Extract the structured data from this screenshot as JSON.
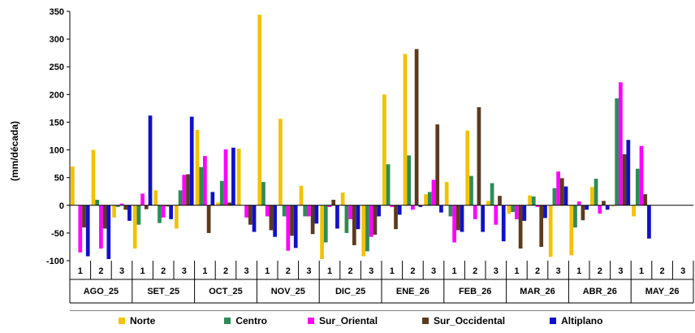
{
  "chart_data": {
    "type": "bar",
    "ylabel": "(mm/década)",
    "ylim": [
      -100,
      350
    ],
    "yticks": [
      -100,
      -50,
      0,
      50,
      100,
      150,
      200,
      250,
      300,
      350
    ],
    "months": [
      "AGO_25",
      "SET_25",
      "OCT_25",
      "NOV_25",
      "DIC_25",
      "ENE_26",
      "FEB_26",
      "MAR_26",
      "ABR_26",
      "MAY_26"
    ],
    "dekads": [
      "1",
      "2",
      "3"
    ],
    "legend_position": "bottom",
    "series": [
      {
        "name": "Norte",
        "color": "#f2c200",
        "values": [
          70,
          100,
          -22,
          -78,
          27,
          -42,
          136,
          5,
          102,
          344,
          156,
          35,
          -97,
          23,
          -92,
          200,
          273,
          20,
          42,
          135,
          8,
          -15,
          18,
          -93,
          -90,
          33,
          -2,
          -20,
          0,
          0
        ]
      },
      {
        "name": "Centro",
        "color": "#2e8b57",
        "values": [
          0,
          10,
          -3,
          -35,
          -32,
          27,
          69,
          44,
          0,
          42,
          -20,
          -20,
          -67,
          -50,
          -83,
          74,
          90,
          24,
          -20,
          53,
          40,
          -12,
          16,
          31,
          -40,
          48,
          193,
          66,
          0,
          0
        ]
      },
      {
        "name": "Sur_Oriental",
        "color": "#ff00ff",
        "values": [
          -85,
          -78,
          3,
          21,
          -22,
          55,
          89,
          101,
          -22,
          -20,
          -82,
          -20,
          -3,
          -25,
          -57,
          -3,
          -8,
          46,
          -67,
          -25,
          -35,
          -25,
          -3,
          61,
          7,
          -15,
          222,
          107,
          0,
          0
        ]
      },
      {
        "name": "Sur_Occidental",
        "color": "#5c3a1e",
        "values": [
          -40,
          -42,
          -8,
          -7,
          -2,
          56,
          -50,
          5,
          -35,
          -45,
          -55,
          -52,
          10,
          -72,
          -53,
          -43,
          282,
          146,
          -45,
          177,
          17,
          -78,
          -75,
          49,
          -27,
          8,
          92,
          20,
          0,
          0
        ]
      },
      {
        "name": "Altiplano",
        "color": "#1010c8",
        "values": [
          -92,
          -97,
          -28,
          162,
          -25,
          160,
          24,
          104,
          -48,
          -57,
          -77,
          -33,
          -42,
          -43,
          -20,
          -17,
          -3,
          -13,
          -48,
          -48,
          -65,
          -28,
          -23,
          34,
          -8,
          -8,
          118,
          -60,
          0,
          0
        ]
      }
    ]
  }
}
